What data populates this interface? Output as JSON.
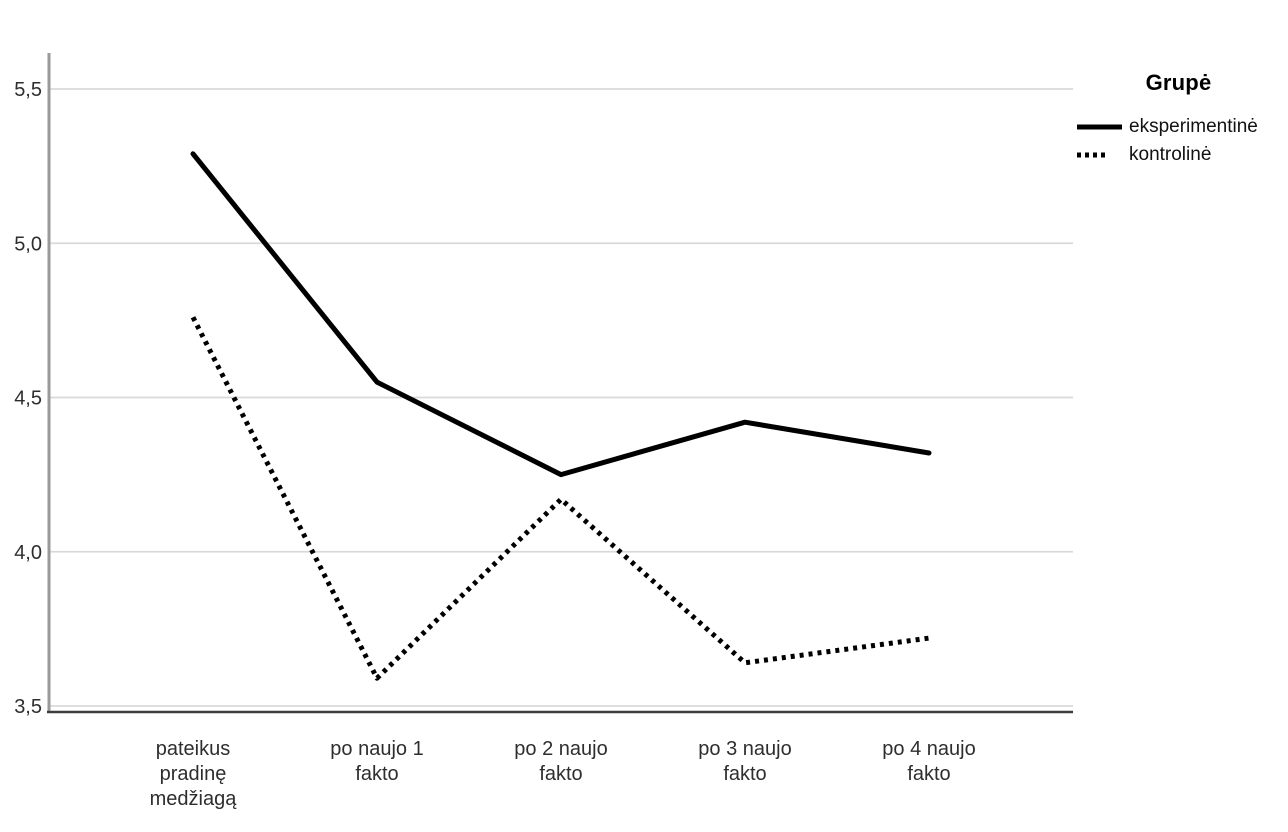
{
  "chart_data": {
    "type": "line",
    "title": "",
    "legend_title": "Grupė",
    "legend_position": "right",
    "grid": true,
    "background": "#ffffff",
    "categories": [
      "pateikus pradinę medžiagą",
      "po naujo 1 fakto",
      "po 2 naujo fakto",
      "po 3 naujo fakto",
      "po 4 naujo fakto"
    ],
    "category_label_lines": [
      [
        "pateikus",
        "pradinę",
        "medžiagą"
      ],
      [
        "po naujo 1",
        "fakto"
      ],
      [
        "po 2 naujo",
        "fakto"
      ],
      [
        "po 3 naujo",
        "fakto"
      ],
      [
        "po 4 naujo",
        "fakto"
      ]
    ],
    "series": [
      {
        "name": "eksperimentinė",
        "style": "solid",
        "color": "#000000",
        "values": [
          5.29,
          4.55,
          4.25,
          4.42,
          4.32
        ]
      },
      {
        "name": "kontrolinė",
        "style": "dotted",
        "color": "#000000",
        "values": [
          4.76,
          3.59,
          4.17,
          3.64,
          3.72
        ]
      }
    ],
    "xlabel": "",
    "ylabel": "",
    "ylim": [
      3.5,
      5.5
    ],
    "yticks": [
      3.5,
      4.0,
      4.5,
      5.0,
      5.5
    ],
    "ytick_labels": [
      "3,5",
      "4,0",
      "4,5",
      "5,0",
      "5,5"
    ],
    "colors": {
      "grid": "#d9d9d9",
      "axis_left": "#9a9a9a",
      "axis_bottom": "#3d3d3d",
      "tick_text": "#2e2e2e"
    }
  }
}
